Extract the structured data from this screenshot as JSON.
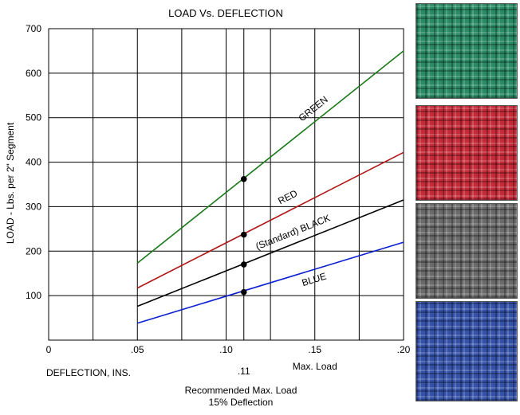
{
  "chart_data": {
    "type": "line",
    "title": "LOAD Vs. DEFLECTION",
    "xlabel": "DEFLECTION, INS.",
    "ylabel": "LOAD - Lbs. per 2\" Segment",
    "xlim": [
      0,
      0.2
    ],
    "ylim": [
      0,
      700
    ],
    "x_ticks": [
      {
        "value": 0,
        "label": "0"
      },
      {
        "value": 0.05,
        "label": ".05"
      },
      {
        "value": 0.1,
        "label": ".10"
      },
      {
        "value": 0.15,
        "label": ".15"
      },
      {
        "value": 0.2,
        "label": ".20"
      }
    ],
    "y_ticks": [
      {
        "value": 100,
        "label": "100"
      },
      {
        "value": 200,
        "label": "200"
      },
      {
        "value": 300,
        "label": "300"
      },
      {
        "value": 400,
        "label": "400"
      },
      {
        "value": 500,
        "label": "500"
      },
      {
        "value": 600,
        "label": "600"
      },
      {
        "value": 700,
        "label": "700"
      }
    ],
    "grid": true,
    "series": [
      {
        "name": "GREEN",
        "color": "#1a7a1a",
        "x": [
          0.05,
          0.2
        ],
        "y": [
          173,
          650
        ],
        "marker": {
          "x": 0.11,
          "y": 362
        }
      },
      {
        "name": "RED",
        "color": "#b01515",
        "x": [
          0.05,
          0.2
        ],
        "y": [
          117,
          422
        ],
        "marker": {
          "x": 0.11,
          "y": 237
        }
      },
      {
        "name": "(Standard) BLACK",
        "color": "#000000",
        "x": [
          0.05,
          0.2
        ],
        "y": [
          76,
          315
        ],
        "marker": {
          "x": 0.11,
          "y": 170
        }
      },
      {
        "name": "BLUE",
        "color": "#0a1fd0",
        "x": [
          0.05,
          0.2
        ],
        "y": [
          38,
          220
        ],
        "marker": {
          "x": 0.11,
          "y": 108
        }
      }
    ],
    "annotations": {
      "recommended_x": 0.11,
      "recommended_x_label": ".11",
      "max_load_x": 0.15,
      "max_load_label": "Max. Load",
      "recommended_label_line1": "Recommended Max. Load",
      "recommended_label_line2": "15% Deflection"
    },
    "swatches": [
      {
        "name": "green-swatch",
        "color": "#2a8a66"
      },
      {
        "name": "red-swatch",
        "color": "#c42a37"
      },
      {
        "name": "black-swatch",
        "color": "#6a6a6a"
      },
      {
        "name": "blue-swatch",
        "color": "#3552a8"
      }
    ]
  }
}
